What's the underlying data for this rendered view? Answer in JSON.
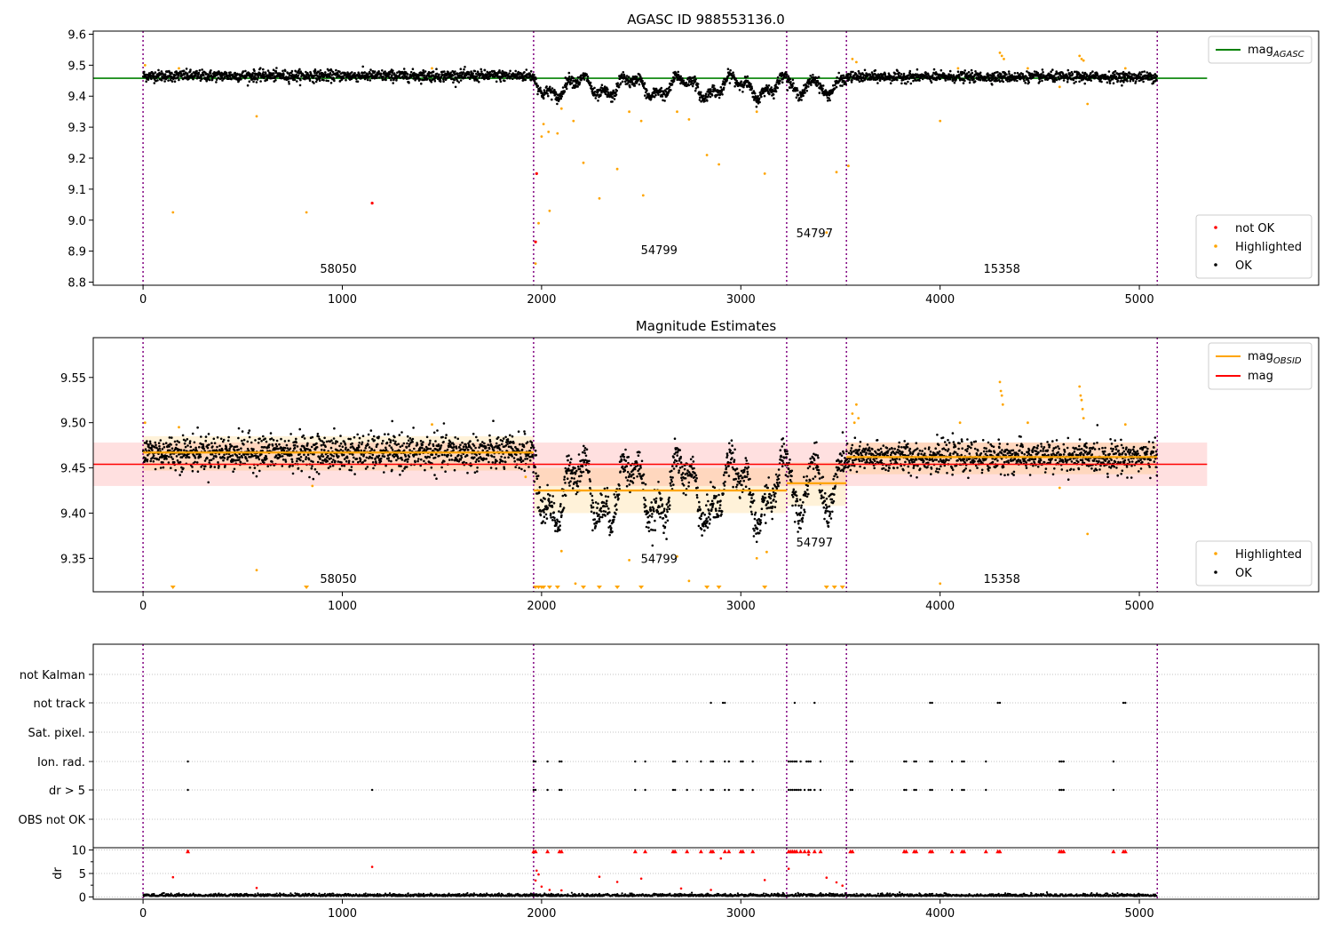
{
  "chart_data": [
    {
      "type": "scatter",
      "title": "AGASC ID 988553136.0",
      "xlim": [
        -250,
        5900
      ],
      "ylim": [
        8.79,
        9.61
      ],
      "x_ticks": [
        0,
        1000,
        2000,
        3000,
        4000,
        5000
      ],
      "y_ticks": [
        8.8,
        8.9,
        9.0,
        9.1,
        9.2,
        9.3,
        9.4,
        9.5,
        9.6
      ],
      "y_tick_labels": [
        "8.8",
        "8.9",
        "9.0",
        "9.1",
        "9.2",
        "9.3",
        "9.4",
        "9.5",
        "9.6"
      ],
      "obsid_boundaries": [
        0,
        1960,
        3230,
        3530,
        5090
      ],
      "obsid_labels": [
        {
          "text": "58050",
          "x": 980,
          "y": 8.83
        },
        {
          "text": "54799",
          "x": 2590,
          "y": 8.89
        },
        {
          "text": "54797",
          "x": 3370,
          "y": 8.945
        },
        {
          "text": "15358",
          "x": 4310,
          "y": 8.83
        }
      ],
      "reference_line": {
        "name": "magAGASC",
        "value": 9.458,
        "x_range": [
          -250,
          5340
        ],
        "color": "#008000"
      },
      "legend_top": [
        {
          "label": "mag",
          "sub": "AGASC",
          "color": "#008000",
          "kind": "line"
        }
      ],
      "legend_bottom": [
        {
          "label": "not OK",
          "color": "#ff0000",
          "kind": "point"
        },
        {
          "label": "Highlighted",
          "color": "#ffa500",
          "kind": "point"
        },
        {
          "label": "OK",
          "color": "#000000",
          "kind": "point"
        }
      ],
      "segments_base": [
        {
          "x0": 0,
          "x1": 1960,
          "level": 9.466,
          "noise": 0.012,
          "waves": []
        },
        {
          "x0": 1960,
          "x1": 3230,
          "level": 9.43,
          "noise": 0.012,
          "waves": [
            [
              0.028,
              260
            ],
            [
              0.015,
              90
            ]
          ]
        },
        {
          "x0": 3230,
          "x1": 3530,
          "level": 9.43,
          "noise": 0.012,
          "waves": [
            [
              0.025,
              140
            ]
          ]
        },
        {
          "x0": 3530,
          "x1": 5090,
          "level": 9.462,
          "noise": 0.011,
          "waves": []
        }
      ],
      "highlighted_points": [
        [
          10,
          9.5
        ],
        [
          150,
          9.025
        ],
        [
          180,
          9.49
        ],
        [
          570,
          9.335
        ],
        [
          820,
          9.025
        ],
        [
          1450,
          9.49
        ],
        [
          1970,
          8.86
        ],
        [
          1985,
          8.99
        ],
        [
          2000,
          9.27
        ],
        [
          2010,
          9.31
        ],
        [
          2040,
          9.03
        ],
        [
          2080,
          9.28
        ],
        [
          2100,
          9.36
        ],
        [
          2160,
          9.32
        ],
        [
          2210,
          9.185
        ],
        [
          2290,
          9.07
        ],
        [
          2380,
          9.165
        ],
        [
          2440,
          9.35
        ],
        [
          2500,
          9.32
        ],
        [
          2510,
          9.08
        ],
        [
          2680,
          9.35
        ],
        [
          2740,
          9.325
        ],
        [
          2830,
          9.21
        ],
        [
          2890,
          9.18
        ],
        [
          3080,
          9.35
        ],
        [
          3120,
          9.15
        ],
        [
          3430,
          8.96
        ],
        [
          3480,
          9.155
        ],
        [
          3560,
          9.52
        ],
        [
          3540,
          9.175
        ],
        [
          3580,
          9.51
        ],
        [
          4000,
          9.32
        ],
        [
          4090,
          9.49
        ],
        [
          4300,
          9.54
        ],
        [
          4310,
          9.53
        ],
        [
          4320,
          9.52
        ],
        [
          4440,
          9.49
        ],
        [
          4600,
          9.43
        ],
        [
          4700,
          9.53
        ],
        [
          4710,
          9.52
        ],
        [
          4720,
          9.515
        ],
        [
          4740,
          9.375
        ],
        [
          4930,
          9.49
        ],
        [
          2035,
          9.285
        ]
      ],
      "notok_points": [
        [
          1150,
          9.055
        ],
        [
          1970,
          8.93
        ],
        [
          1975,
          9.15
        ]
      ]
    },
    {
      "type": "scatter",
      "title": "Magnitude Estimates",
      "xlim": [
        -250,
        5900
      ],
      "ylim": [
        9.313,
        9.594
      ],
      "x_ticks": [
        0,
        1000,
        2000,
        3000,
        4000,
        5000
      ],
      "y_ticks": [
        9.35,
        9.4,
        9.45,
        9.5,
        9.55
      ],
      "y_tick_labels": [
        "9.35",
        "9.40",
        "9.45",
        "9.50",
        "9.55"
      ],
      "obsid_boundaries": [
        0,
        1960,
        3230,
        3530,
        5090
      ],
      "obsid_labels": [
        {
          "text": "58050",
          "x": 980,
          "y": 9.323
        },
        {
          "text": "54799",
          "x": 2590,
          "y": 9.345
        },
        {
          "text": "54797",
          "x": 3370,
          "y": 9.363
        },
        {
          "text": "15358",
          "x": 4310,
          "y": 9.323
        }
      ],
      "mag": {
        "value": 9.454,
        "band": [
          9.43,
          9.478
        ],
        "x_range": [
          -250,
          5340
        ],
        "color": "#ff0000"
      },
      "mag_obsid": [
        {
          "x0": 0,
          "x1": 1960,
          "value": 9.467,
          "band": [
            9.447,
            9.485
          ]
        },
        {
          "x0": 1960,
          "x1": 3230,
          "value": 9.425,
          "band": [
            9.4,
            9.45
          ]
        },
        {
          "x0": 3230,
          "x1": 3530,
          "value": 9.433,
          "band": [
            9.408,
            9.456
          ]
        },
        {
          "x0": 3530,
          "x1": 5090,
          "value": 9.462,
          "band": [
            9.443,
            9.478
          ]
        }
      ],
      "legend_top": [
        {
          "label": "mag",
          "sub": "OBSID",
          "color": "#ffa500",
          "kind": "line"
        },
        {
          "label": "mag",
          "sub": "",
          "color": "#ff0000",
          "kind": "line"
        }
      ],
      "legend_bottom": [
        {
          "label": "Highlighted",
          "color": "#ffa500",
          "kind": "point"
        },
        {
          "label": "OK",
          "color": "#000000",
          "kind": "point"
        }
      ],
      "segments_base": [
        {
          "x0": 0,
          "x1": 1960,
          "level": 9.467,
          "noise": 0.013,
          "waves": []
        },
        {
          "x0": 1960,
          "x1": 3230,
          "level": 9.425,
          "noise": 0.013,
          "waves": [
            [
              0.03,
              260
            ],
            [
              0.015,
              90
            ]
          ]
        },
        {
          "x0": 3230,
          "x1": 3530,
          "level": 9.43,
          "noise": 0.013,
          "waves": [
            [
              0.028,
              140
            ]
          ]
        },
        {
          "x0": 3530,
          "x1": 5090,
          "level": 9.462,
          "noise": 0.011,
          "waves": []
        }
      ],
      "highlighted_points": [
        [
          10,
          9.5
        ],
        [
          180,
          9.495
        ],
        [
          570,
          9.337
        ],
        [
          850,
          9.43
        ],
        [
          1450,
          9.498
        ],
        [
          1920,
          9.44
        ],
        [
          2100,
          9.358
        ],
        [
          2170,
          9.322
        ],
        [
          2440,
          9.348
        ],
        [
          2680,
          9.352
        ],
        [
          2740,
          9.325
        ],
        [
          3080,
          9.35
        ],
        [
          3130,
          9.357
        ],
        [
          3560,
          9.51
        ],
        [
          3570,
          9.5
        ],
        [
          3580,
          9.52
        ],
        [
          3590,
          9.505
        ],
        [
          4000,
          9.322
        ],
        [
          4100,
          9.5
        ],
        [
          4300,
          9.545
        ],
        [
          4305,
          9.535
        ],
        [
          4310,
          9.53
        ],
        [
          4315,
          9.52
        ],
        [
          4440,
          9.5
        ],
        [
          4600,
          9.428
        ],
        [
          4700,
          9.54
        ],
        [
          4705,
          9.53
        ],
        [
          4710,
          9.525
        ],
        [
          4715,
          9.515
        ],
        [
          4720,
          9.505
        ],
        [
          4740,
          9.377
        ],
        [
          4930,
          9.498
        ]
      ],
      "below_range_x": [
        150,
        820,
        1970,
        1985,
        2000,
        2010,
        2040,
        2080,
        2210,
        2290,
        2380,
        2500,
        2830,
        2890,
        3120,
        3430,
        3470,
        3510
      ]
    },
    {
      "type": "scatter",
      "title": "",
      "xlim": [
        -250,
        5900
      ],
      "x_ticks": [
        0,
        1000,
        2000,
        3000,
        4000,
        5000
      ],
      "obsid_boundaries": [
        0,
        1960,
        3230,
        3530,
        5090
      ],
      "flag_rows": [
        "not Kalman",
        "not track",
        "Sat. pixel.",
        "Ion. rad.",
        "dr > 5",
        "OBS not OK"
      ],
      "flag_points": {
        "not track": [
          2850,
          2910,
          2920,
          3270,
          3370,
          3950,
          3960,
          4290,
          4300,
          4920,
          4930
        ],
        "Ion. rad.": [
          225,
          1960,
          1970,
          2030,
          2090,
          2100,
          2470,
          2520,
          2660,
          2670,
          2730,
          2800,
          2850,
          2860,
          2920,
          2940,
          3000,
          3010,
          3060,
          3240,
          3250,
          3260,
          3270,
          3280,
          3300,
          3330,
          3340,
          3350,
          3400,
          3550,
          3560,
          3820,
          3830,
          3870,
          3880,
          3950,
          3960,
          4060,
          4110,
          4120,
          4230,
          4600,
          4610,
          4620,
          4870
        ],
        "dr > 5": [
          225,
          1150,
          1960,
          1970,
          2030,
          2090,
          2100,
          2470,
          2520,
          2660,
          2670,
          2730,
          2800,
          2850,
          2860,
          2920,
          2940,
          3000,
          3010,
          3060,
          3240,
          3250,
          3260,
          3270,
          3280,
          3290,
          3300,
          3320,
          3340,
          3350,
          3370,
          3400,
          3550,
          3560,
          3820,
          3830,
          3870,
          3880,
          3950,
          3960,
          4060,
          4110,
          4120,
          4230,
          4600,
          4610,
          4620,
          4870
        ]
      },
      "dr_panel": {
        "ylabel": "dr",
        "ylim": [
          -0.5,
          10.5
        ],
        "y_ticks": [
          0,
          5,
          10
        ],
        "y_tick_labels": [
          "0",
          "5",
          "10"
        ],
        "high_points": [
          [
            225,
            9.8
          ],
          [
            150,
            4.2
          ],
          [
            1150,
            6.4
          ],
          [
            1970,
            3.5
          ],
          [
            1975,
            5.6
          ],
          [
            1985,
            4.8
          ],
          [
            2000,
            2.2
          ],
          [
            2040,
            1.5
          ],
          [
            2100,
            1.4
          ],
          [
            2290,
            4.3
          ],
          [
            2380,
            3.2
          ],
          [
            2500,
            3.9
          ],
          [
            2900,
            8.2
          ],
          [
            3120,
            3.6
          ],
          [
            3240,
            6.0
          ],
          [
            3340,
            9.0
          ],
          [
            3430,
            4.1
          ],
          [
            3480,
            3.1
          ],
          [
            3510,
            2.4
          ],
          [
            570,
            1.9
          ],
          [
            2700,
            1.8
          ],
          [
            2850,
            1.5
          ]
        ],
        "top_x": [
          225,
          1960,
          1970,
          2030,
          2090,
          2100,
          2470,
          2520,
          2660,
          2670,
          2730,
          2800,
          2850,
          2860,
          2920,
          2940,
          3000,
          3010,
          3060,
          3240,
          3250,
          3260,
          3270,
          3280,
          3300,
          3320,
          3340,
          3370,
          3400,
          3550,
          3560,
          3820,
          3830,
          3870,
          3880,
          3950,
          3960,
          4060,
          4110,
          4120,
          4230,
          4290,
          4300,
          4600,
          4610,
          4620,
          4870,
          4920,
          4930
        ]
      }
    }
  ]
}
